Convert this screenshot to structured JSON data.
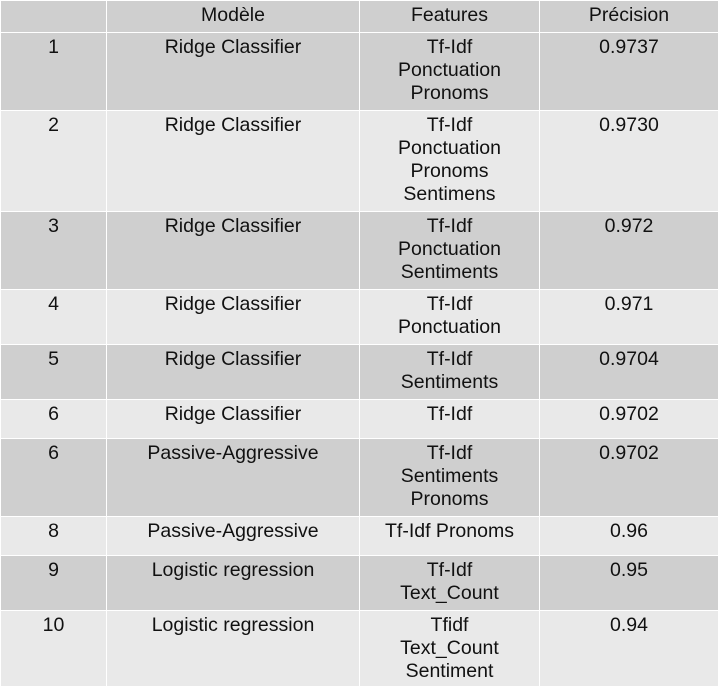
{
  "table": {
    "headers": [
      "",
      "Modèle",
      "Features",
      "Précision"
    ],
    "rows": [
      {
        "rank": "1",
        "model": "Ridge Classifier",
        "features": [
          "Tf-Idf",
          "Ponctuation",
          "Pronoms"
        ],
        "precision": "0.9737"
      },
      {
        "rank": "2",
        "model": "Ridge Classifier",
        "features": [
          "Tf-Idf",
          "Ponctuation",
          "Pronoms",
          "Sentimens"
        ],
        "precision": "0.9730"
      },
      {
        "rank": "3",
        "model": "Ridge Classifier",
        "features": [
          "Tf-Idf",
          "Ponctuation",
          "Sentiments"
        ],
        "precision": "0.972"
      },
      {
        "rank": "4",
        "model": "Ridge Classifier",
        "features": [
          "Tf-Idf",
          "Ponctuation"
        ],
        "precision": "0.971"
      },
      {
        "rank": "5",
        "model": "Ridge Classifier",
        "features": [
          "Tf-Idf",
          "Sentiments"
        ],
        "precision": "0.9704"
      },
      {
        "rank": "6",
        "model": "Ridge Classifier",
        "features": [
          "Tf-Idf"
        ],
        "precision": "0.9702"
      },
      {
        "rank": "6",
        "model": "Passive-Aggressive",
        "features": [
          "Tf-Idf",
          "Sentiments",
          "Pronoms"
        ],
        "precision": "0.9702"
      },
      {
        "rank": "8",
        "model": "Passive-Aggressive",
        "features": [
          "Tf-Idf Pronoms"
        ],
        "precision": "0.96"
      },
      {
        "rank": "9",
        "model": "Logistic regression",
        "features": [
          "Tf-Idf",
          "Text_Count"
        ],
        "precision": "0.95"
      },
      {
        "rank": "10",
        "model": "Logistic regression",
        "features": [
          "Tfidf",
          "Text_Count",
          "Sentiment"
        ],
        "precision": "0.94"
      }
    ]
  },
  "colors": {
    "dark_row": "#cfcfcf",
    "light_row": "#e9e9e9",
    "grid": "#ffffff"
  }
}
